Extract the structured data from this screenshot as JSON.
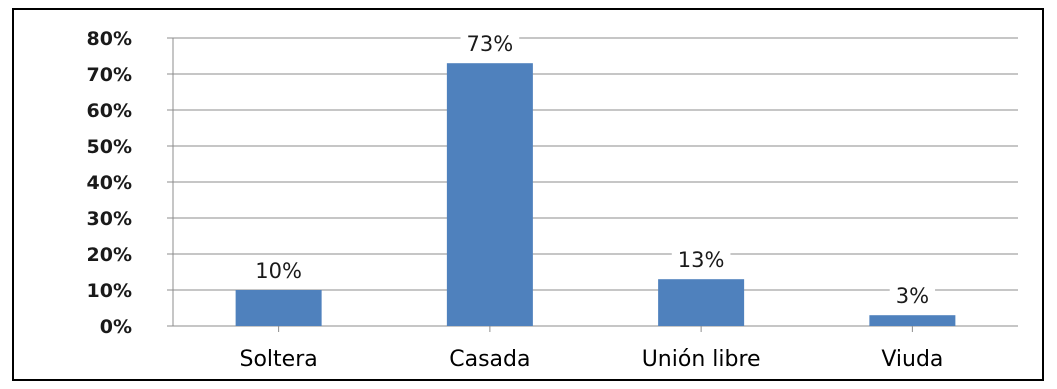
{
  "chart_data": {
    "type": "bar",
    "categories": [
      "Soltera",
      "Casada",
      "Unión libre",
      "Viuda"
    ],
    "values": [
      10,
      73,
      13,
      3
    ],
    "data_labels": [
      "10%",
      "73%",
      "13%",
      "3%"
    ],
    "ylim": [
      0,
      80
    ],
    "yticks": [
      0,
      10,
      20,
      30,
      40,
      50,
      60,
      70,
      80
    ],
    "ytick_labels": [
      "0%",
      "10%",
      "20%",
      "30%",
      "40%",
      "50%",
      "60%",
      "70%",
      "80%"
    ],
    "bar_color": "#4f81bd",
    "grid": true,
    "legend": "none"
  }
}
